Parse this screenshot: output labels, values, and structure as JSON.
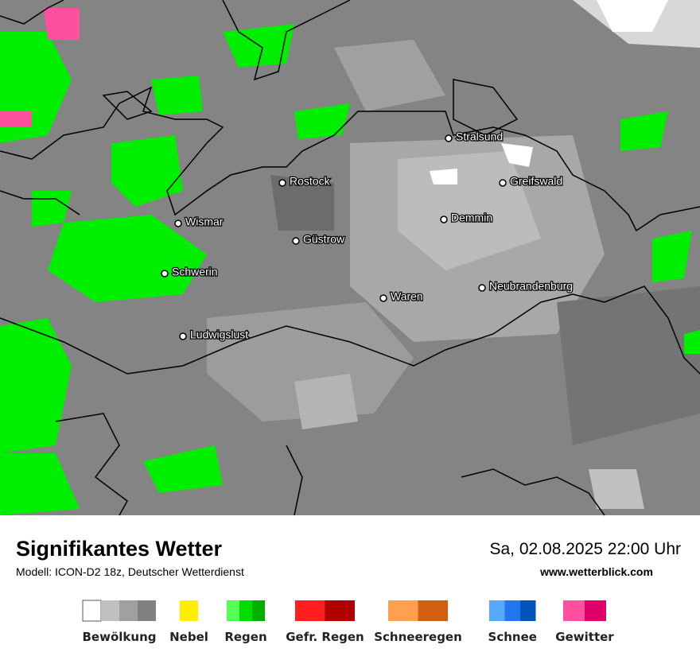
{
  "map": {
    "cities": [
      "Stralsund",
      "Rostock",
      "Greifswald",
      "Demmin",
      "Wismar",
      "Güstrow",
      "Schwerin",
      "Neubrandenburg",
      "Waren",
      "Ludwigslust"
    ]
  },
  "footer": {
    "title": "Signifikantes Wetter",
    "subtitle": "Modell: ICON-D2 18z, Deutscher Wetterdienst",
    "datetime": "Sa, 02.08.2025 22:00 Uhr",
    "url": "www.wetterblick.com"
  },
  "legend": [
    "Bewölkung",
    "Nebel",
    "Regen",
    "Gefr. Regen",
    "Schneeregen",
    "Schnee",
    "Gewitter"
  ]
}
